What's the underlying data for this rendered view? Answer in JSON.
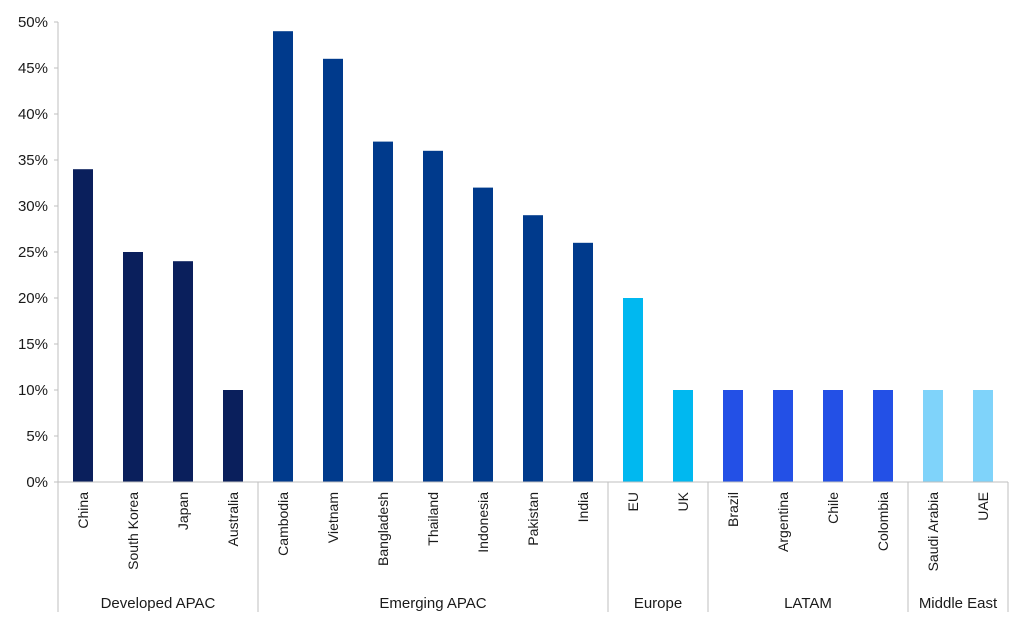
{
  "chart_data": {
    "type": "bar",
    "title": "",
    "xlabel": "",
    "ylabel": "",
    "ylim": [
      0,
      50
    ],
    "y_ticks": [
      0,
      5,
      10,
      15,
      20,
      25,
      30,
      35,
      40,
      45,
      50
    ],
    "y_tick_format": "%",
    "grid": false,
    "groups": [
      {
        "name": "Developed APAC",
        "color": "#0a1f5c",
        "categories": [
          "China",
          "South Korea",
          "Japan",
          "Australia"
        ],
        "values": [
          34,
          25,
          24,
          10
        ]
      },
      {
        "name": "Emerging APAC",
        "color": "#003a8c",
        "categories": [
          "Cambodia",
          "Vietnam",
          "Bangladesh",
          "Thailand",
          "Indonesia",
          "Pakistan",
          "India"
        ],
        "values": [
          49,
          46,
          37,
          36,
          32,
          29,
          26
        ]
      },
      {
        "name": "Europe",
        "color": "#00b8f0",
        "categories": [
          "EU",
          "UK"
        ],
        "values": [
          20,
          10
        ]
      },
      {
        "name": "LATAM",
        "color": "#2350e6",
        "categories": [
          "Brazil",
          "Argentina",
          "Chile",
          "Colombia"
        ],
        "values": [
          10,
          10,
          10,
          10
        ]
      },
      {
        "name": "Middle East",
        "color": "#7fd3fa",
        "categories": [
          "Saudi Arabia",
          "UAE"
        ],
        "values": [
          10,
          10
        ]
      }
    ]
  }
}
